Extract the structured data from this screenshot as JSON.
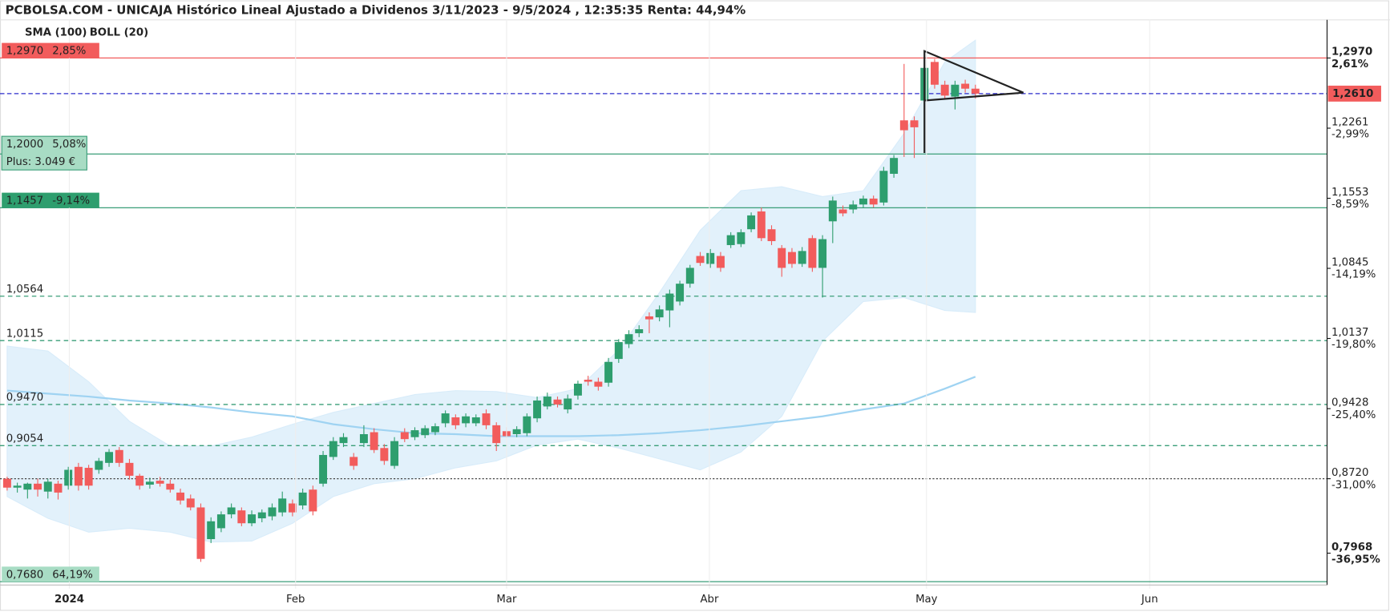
{
  "chart_data": {
    "type": "candlestick",
    "title": "PCBOLSA.COM - UNICAJA Histórico Lineal Ajustado a Dividenos 3/11/2023 - 9/5/2024 , 12:35:35 Renta: 44,94%",
    "up_color": "#2e9e6e",
    "down_color": "#f25c5c",
    "open": [
      0.872,
      0.863,
      0.861,
      0.867,
      0.859,
      0.867,
      0.865,
      0.884,
      0.883,
      0.881,
      0.888,
      0.901,
      0.888,
      0.875,
      0.866,
      0.87,
      0.867,
      0.858,
      0.852,
      0.843,
      0.811,
      0.822,
      0.836,
      0.84,
      0.827,
      0.832,
      0.834,
      0.838,
      0.847,
      0.845,
      0.861,
      0.867,
      0.894,
      0.908,
      0.894,
      0.908,
      0.919,
      0.903,
      0.885,
      0.919,
      0.914,
      0.916,
      0.919,
      0.928,
      0.934,
      0.928,
      0.928,
      0.938,
      0.926,
      0.92,
      0.917,
      0.918,
      0.933,
      0.945,
      0.952,
      0.942,
      0.956,
      0.972,
      0.97,
      0.969,
      0.993,
      1.008,
      1.019,
      1.036,
      1.035,
      1.042,
      1.051,
      1.069,
      1.097,
      1.089,
      1.097,
      1.108,
      1.109,
      1.124,
      1.142,
      1.124,
      1.105,
      1.101,
      1.089,
      1.115,
      1.085,
      1.132,
      1.144,
      1.144,
      1.149,
      1.155,
      1.151,
      1.18,
      1.234,
      1.234,
      1.254,
      1.293,
      1.27,
      1.258,
      1.271,
      1.266
    ],
    "high": [
      0.874,
      0.868,
      0.868,
      0.872,
      0.872,
      0.87,
      0.884,
      0.888,
      0.886,
      0.893,
      0.902,
      0.904,
      0.892,
      0.877,
      0.873,
      0.874,
      0.871,
      0.862,
      0.856,
      0.847,
      0.833,
      0.839,
      0.847,
      0.843,
      0.84,
      0.841,
      0.847,
      0.859,
      0.851,
      0.862,
      0.865,
      0.9,
      0.914,
      0.918,
      0.898,
      0.926,
      0.923,
      0.907,
      0.914,
      0.923,
      0.924,
      0.926,
      0.928,
      0.941,
      0.937,
      0.938,
      0.937,
      0.942,
      0.929,
      0.924,
      0.925,
      0.938,
      0.955,
      0.959,
      0.955,
      0.957,
      0.971,
      0.976,
      0.974,
      0.994,
      1.013,
      1.022,
      1.027,
      1.04,
      1.047,
      1.063,
      1.072,
      1.088,
      1.101,
      1.104,
      1.101,
      1.121,
      1.124,
      1.141,
      1.146,
      1.128,
      1.108,
      1.105,
      1.106,
      1.118,
      1.118,
      1.157,
      1.148,
      1.153,
      1.158,
      1.158,
      1.187,
      1.199,
      1.291,
      1.238,
      1.291,
      1.296,
      1.274,
      1.274,
      1.275,
      1.27
    ],
    "low": [
      0.86,
      0.858,
      0.852,
      0.854,
      0.852,
      0.851,
      0.861,
      0.86,
      0.861,
      0.877,
      0.884,
      0.884,
      0.871,
      0.861,
      0.862,
      0.864,
      0.858,
      0.846,
      0.84,
      0.788,
      0.807,
      0.818,
      0.832,
      0.824,
      0.824,
      0.828,
      0.83,
      0.834,
      0.834,
      0.841,
      0.835,
      0.864,
      0.891,
      0.904,
      0.881,
      0.904,
      0.898,
      0.886,
      0.882,
      0.909,
      0.911,
      0.913,
      0.916,
      0.924,
      0.922,
      0.924,
      0.925,
      0.922,
      0.9,
      0.913,
      0.914,
      0.915,
      0.929,
      0.942,
      0.944,
      0.938,
      0.952,
      0.966,
      0.961,
      0.965,
      0.989,
      1.004,
      1.015,
      1.019,
      1.031,
      1.025,
      1.047,
      1.065,
      1.087,
      1.085,
      1.081,
      1.105,
      1.106,
      1.121,
      1.112,
      1.108,
      1.076,
      1.085,
      1.086,
      1.081,
      1.055,
      1.11,
      1.137,
      1.14,
      1.146,
      1.146,
      1.148,
      1.176,
      1.197,
      1.196,
      1.25,
      1.266,
      1.255,
      1.245,
      1.262,
      1.256
    ],
    "close": [
      0.863,
      0.865,
      0.867,
      0.861,
      0.869,
      0.858,
      0.881,
      0.865,
      0.865,
      0.89,
      0.899,
      0.888,
      0.875,
      0.865,
      0.869,
      0.867,
      0.861,
      0.85,
      0.843,
      0.791,
      0.829,
      0.836,
      0.843,
      0.827,
      0.836,
      0.838,
      0.843,
      0.852,
      0.838,
      0.858,
      0.839,
      0.896,
      0.91,
      0.914,
      0.885,
      0.917,
      0.901,
      0.89,
      0.91,
      0.912,
      0.921,
      0.923,
      0.925,
      0.938,
      0.926,
      0.935,
      0.934,
      0.926,
      0.908,
      0.915,
      0.922,
      0.935,
      0.951,
      0.955,
      0.947,
      0.953,
      0.968,
      0.97,
      0.965,
      0.99,
      1.01,
      1.018,
      1.023,
      1.033,
      1.043,
      1.059,
      1.069,
      1.085,
      1.09,
      1.1,
      1.085,
      1.118,
      1.121,
      1.138,
      1.115,
      1.112,
      1.085,
      1.089,
      1.102,
      1.085,
      1.114,
      1.153,
      1.14,
      1.149,
      1.155,
      1.149,
      1.183,
      1.196,
      1.224,
      1.227,
      1.287,
      1.27,
      1.259,
      1.27,
      1.266,
      1.261
    ],
    "xlim": [
      -0.7,
      129.5
    ],
    "xticks": [
      {
        "value": 6.1,
        "label": "2024"
      },
      {
        "value": 28.3,
        "label": "Feb"
      },
      {
        "value": 49,
        "label": "Mar"
      },
      {
        "value": 68.9,
        "label": "Abr"
      },
      {
        "value": 90.2,
        "label": "May"
      },
      {
        "value": 112.1,
        "label": "Jun"
      }
    ],
    "ylim": [
      0.7646,
      1.3355
    ],
    "yticks": [
      {
        "value": 1.297,
        "label": "1,2970"
      },
      {
        "value": 1.2261,
        "label": "1,2261"
      },
      {
        "value": 1.1553,
        "label": "1,1553"
      },
      {
        "value": 1.0845,
        "label": "1,0845"
      },
      {
        "value": 1.0137,
        "label": "1,0137"
      },
      {
        "value": 0.9428,
        "label": "0,9428"
      },
      {
        "value": 0.872,
        "label": "0,8720"
      },
      {
        "value": 0.7968,
        "label": "0,7968"
      }
    ],
    "ytick_changes": [
      "2,61%",
      "-2,99%",
      "-8,59%",
      "-14,19%",
      "-19,80%",
      "-25,40%",
      "-31,00%",
      "-36,95%"
    ],
    "current_price": {
      "value": 1.261,
      "label": "1,2610",
      "color": "#f25c5c",
      "line_color": "#2b2bcc"
    },
    "levels": [
      {
        "value": 1.297,
        "label": "1,2970",
        "change": "2,85%",
        "line_color": "#f25c5c",
        "line_style": "solid",
        "box": "#f25c5c",
        "text_color": "#ffffff"
      },
      {
        "value": 1.2,
        "label": "1,2000",
        "change": "5,08%",
        "extra": "Plus: 3.049 €",
        "line_color": "#3a9e78",
        "line_style": "solid",
        "box": "#a8dcc4",
        "text_color": "#222222"
      },
      {
        "value": 1.1457,
        "label": "1,1457",
        "change": "-9,14%",
        "line_color": "#3a9e78",
        "line_style": "solid",
        "box": "#2e9e6e",
        "text_color": "#ffffff"
      },
      {
        "value": 1.0564,
        "label": "1,0564",
        "line_color": "#3a9e78",
        "line_style": "dashed",
        "text_color": "#222222"
      },
      {
        "value": 1.0115,
        "label": "1,0115",
        "line_color": "#3a9e78",
        "line_style": "dashed",
        "text_color": "#222222"
      },
      {
        "value": 0.947,
        "label": "0,9470",
        "line_color": "#3a9e78",
        "line_style": "dashed",
        "text_color": "#222222"
      },
      {
        "value": 0.9054,
        "label": "0,9054",
        "line_color": "#3a9e78",
        "line_style": "dashed",
        "text_color": "#222222"
      },
      {
        "value": 0.872,
        "line_color": "#444444",
        "line_style": "dotted"
      },
      {
        "value": 0.768,
        "label": "0,7680",
        "change": "64,19%",
        "line_color": "#3a9e78",
        "line_style": "solid",
        "box": "#a8dcc4",
        "text_color": "#222222"
      }
    ],
    "indicators": {
      "x": [
        0,
        4,
        8,
        12,
        16,
        20,
        24,
        28,
        32,
        36,
        40,
        44,
        48,
        52,
        56,
        60,
        64,
        68,
        72,
        76,
        80,
        84,
        88,
        92,
        95
      ],
      "sma": {
        "name": "SMA (100)",
        "color": "#9fd3f2",
        "values": [
          0.961,
          0.958,
          0.955,
          0.951,
          0.948,
          0.944,
          0.939,
          0.935,
          0.927,
          0.922,
          0.918,
          0.917,
          0.915,
          0.915,
          0.915,
          0.916,
          0.918,
          0.921,
          0.925,
          0.93,
          0.935,
          0.942,
          0.948,
          0.963,
          0.975
        ]
      },
      "boll": {
        "name": "BOLL (20)",
        "color": "#cfcfcf",
        "fill": "#d8ecfa",
        "upper": [
          1.006,
          1.001,
          0.97,
          0.93,
          0.905,
          0.905,
          0.914,
          0.927,
          0.939,
          0.948,
          0.957,
          0.961,
          0.96,
          0.954,
          0.963,
          1.002,
          1.06,
          1.123,
          1.163,
          1.167,
          1.157,
          1.163,
          1.221,
          1.293,
          1.315
        ],
        "lower": [
          0.854,
          0.832,
          0.818,
          0.822,
          0.818,
          0.808,
          0.809,
          0.827,
          0.854,
          0.867,
          0.872,
          0.883,
          0.89,
          0.906,
          0.912,
          0.903,
          0.892,
          0.881,
          0.899,
          0.935,
          1.011,
          1.051,
          1.055,
          1.042,
          1.04
        ]
      }
    },
    "pattern_lines": {
      "x": [
        90,
        90,
        99.7,
        90
      ],
      "y": [
        1.201,
        1.304,
        1.262,
        1.254
      ],
      "color": "#222222"
    }
  }
}
